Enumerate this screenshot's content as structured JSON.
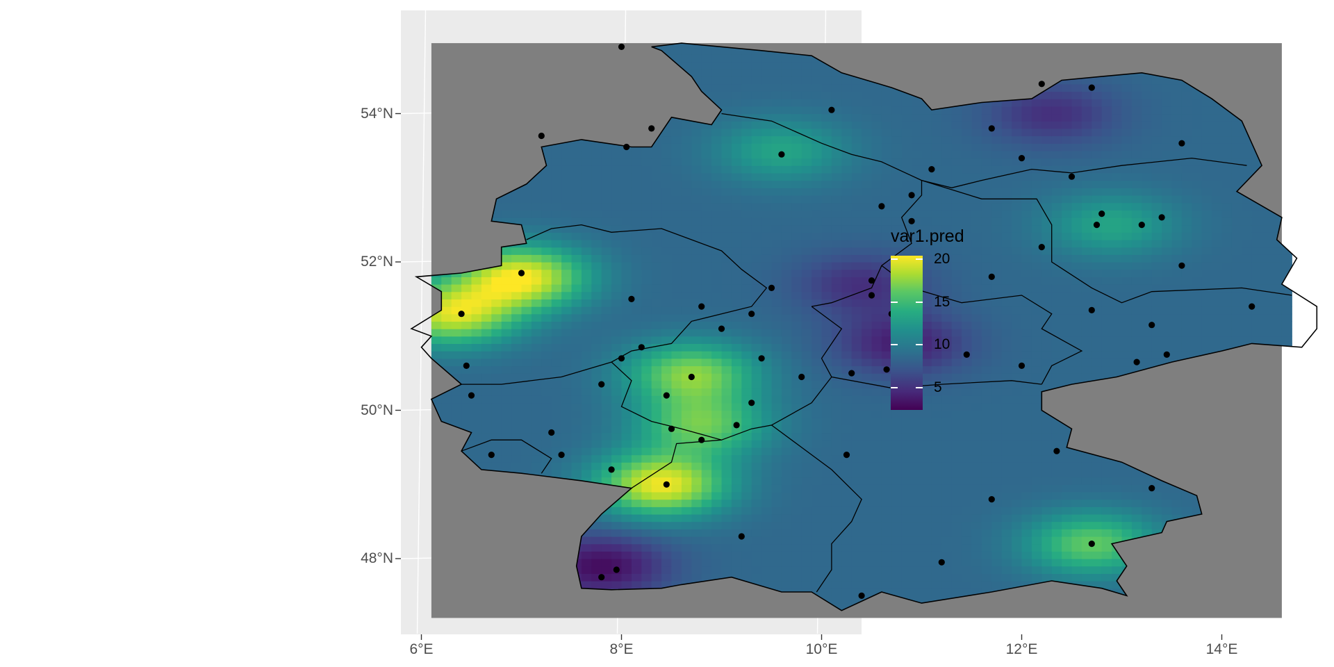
{
  "legend": {
    "title": "var1.pred",
    "ticks": [
      {
        "label": "20",
        "value": 20
      },
      {
        "label": "15",
        "value": 15
      },
      {
        "label": "10",
        "value": 10
      },
      {
        "label": "5",
        "value": 5
      }
    ],
    "range": [
      2.4,
      20.4
    ],
    "colormap": "viridis",
    "colors": [
      "#440154",
      "#3b528b",
      "#21908d",
      "#5dc863",
      "#fde725"
    ]
  },
  "axes": {
    "x_ticks": [
      {
        "label": "6°E",
        "lon": 6
      },
      {
        "label": "8°E",
        "lon": 8
      },
      {
        "label": "10°E",
        "lon": 10
      },
      {
        "label": "12°E",
        "lon": 12
      },
      {
        "label": "14°E",
        "lon": 14
      }
    ],
    "y_ticks": [
      {
        "label": "54°N",
        "lat": 54
      },
      {
        "label": "52°N",
        "lat": 52
      },
      {
        "label": "50°N",
        "lat": 50
      },
      {
        "label": "48°N",
        "lat": 48
      }
    ],
    "lon_range": [
      5.9,
      15.0
    ],
    "lat_range": [
      47.2,
      55.1
    ]
  },
  "map": {
    "panel_color": "#ebebeb",
    "background_fill": "#7f7f7f",
    "border_color": "#000000",
    "point_color": "#000000",
    "region": "Germany",
    "grid_extent": {
      "lon": [
        6.1,
        14.6
      ],
      "lat": [
        47.2,
        54.95
      ]
    }
  },
  "chart_data": {
    "type": "heatmap",
    "title": "",
    "xlabel": "",
    "ylabel": "",
    "legend_title": "var1.pred",
    "value_range": [
      2.4,
      20.4
    ],
    "hotspots": [
      {
        "lon": 7.0,
        "lat": 51.8,
        "value": 20
      },
      {
        "lon": 6.3,
        "lat": 51.3,
        "value": 19
      },
      {
        "lon": 8.4,
        "lat": 49.0,
        "value": 20
      },
      {
        "lon": 8.7,
        "lat": 50.5,
        "value": 17
      },
      {
        "lon": 8.8,
        "lat": 49.8,
        "value": 16
      },
      {
        "lon": 12.7,
        "lat": 48.2,
        "value": 16
      },
      {
        "lon": 9.6,
        "lat": 53.5,
        "value": 13
      },
      {
        "lon": 12.9,
        "lat": 52.5,
        "value": 13
      },
      {
        "lon": 7.8,
        "lat": 47.9,
        "value": 3
      },
      {
        "lon": 10.8,
        "lat": 50.9,
        "value": 4
      },
      {
        "lon": 10.4,
        "lat": 51.7,
        "value": 5
      },
      {
        "lon": 12.3,
        "lat": 54.0,
        "value": 5
      }
    ],
    "stations": [
      {
        "lon": 8.0,
        "lat": 54.9
      },
      {
        "lon": 10.1,
        "lat": 54.05
      },
      {
        "lon": 7.2,
        "lat": 53.7
      },
      {
        "lon": 8.05,
        "lat": 53.55
      },
      {
        "lon": 8.3,
        "lat": 53.8
      },
      {
        "lon": 9.6,
        "lat": 53.45
      },
      {
        "lon": 11.7,
        "lat": 53.8
      },
      {
        "lon": 12.2,
        "lat": 54.4
      },
      {
        "lon": 12.7,
        "lat": 54.35
      },
      {
        "lon": 13.6,
        "lat": 53.6
      },
      {
        "lon": 12.0,
        "lat": 53.4
      },
      {
        "lon": 11.1,
        "lat": 53.25
      },
      {
        "lon": 12.5,
        "lat": 53.15
      },
      {
        "lon": 10.9,
        "lat": 52.9
      },
      {
        "lon": 10.6,
        "lat": 52.75
      },
      {
        "lon": 10.9,
        "lat": 52.55
      },
      {
        "lon": 12.8,
        "lat": 52.65
      },
      {
        "lon": 12.75,
        "lat": 52.5
      },
      {
        "lon": 13.2,
        "lat": 52.5
      },
      {
        "lon": 13.4,
        "lat": 52.6
      },
      {
        "lon": 12.2,
        "lat": 52.2
      },
      {
        "lon": 13.6,
        "lat": 51.95
      },
      {
        "lon": 7.0,
        "lat": 51.85
      },
      {
        "lon": 11.7,
        "lat": 51.8
      },
      {
        "lon": 10.5,
        "lat": 51.75
      },
      {
        "lon": 10.9,
        "lat": 51.65
      },
      {
        "lon": 8.1,
        "lat": 51.5
      },
      {
        "lon": 9.5,
        "lat": 51.65
      },
      {
        "lon": 10.5,
        "lat": 51.55
      },
      {
        "lon": 6.4,
        "lat": 51.3
      },
      {
        "lon": 8.8,
        "lat": 51.4
      },
      {
        "lon": 9.3,
        "lat": 51.3
      },
      {
        "lon": 10.7,
        "lat": 51.3
      },
      {
        "lon": 9.0,
        "lat": 51.1
      },
      {
        "lon": 12.7,
        "lat": 51.35
      },
      {
        "lon": 13.3,
        "lat": 51.15
      },
      {
        "lon": 14.3,
        "lat": 51.4
      },
      {
        "lon": 6.45,
        "lat": 50.6
      },
      {
        "lon": 8.0,
        "lat": 50.7
      },
      {
        "lon": 8.2,
        "lat": 50.85
      },
      {
        "lon": 9.4,
        "lat": 50.7
      },
      {
        "lon": 11.45,
        "lat": 50.75
      },
      {
        "lon": 13.15,
        "lat": 50.65
      },
      {
        "lon": 13.45,
        "lat": 50.75
      },
      {
        "lon": 6.5,
        "lat": 50.2
      },
      {
        "lon": 7.8,
        "lat": 50.35
      },
      {
        "lon": 8.7,
        "lat": 50.45
      },
      {
        "lon": 9.8,
        "lat": 50.45
      },
      {
        "lon": 10.3,
        "lat": 50.5
      },
      {
        "lon": 10.65,
        "lat": 50.55
      },
      {
        "lon": 10.95,
        "lat": 50.45
      },
      {
        "lon": 12.0,
        "lat": 50.6
      },
      {
        "lon": 8.45,
        "lat": 50.2
      },
      {
        "lon": 9.3,
        "lat": 50.1
      },
      {
        "lon": 7.3,
        "lat": 49.7
      },
      {
        "lon": 8.5,
        "lat": 49.75
      },
      {
        "lon": 9.15,
        "lat": 49.8
      },
      {
        "lon": 8.8,
        "lat": 49.6
      },
      {
        "lon": 6.7,
        "lat": 49.4
      },
      {
        "lon": 7.4,
        "lat": 49.4
      },
      {
        "lon": 7.9,
        "lat": 49.2
      },
      {
        "lon": 10.25,
        "lat": 49.4
      },
      {
        "lon": 12.35,
        "lat": 49.45
      },
      {
        "lon": 8.45,
        "lat": 49.0
      },
      {
        "lon": 13.3,
        "lat": 48.95
      },
      {
        "lon": 11.7,
        "lat": 48.8
      },
      {
        "lon": 9.2,
        "lat": 48.3
      },
      {
        "lon": 12.7,
        "lat": 48.2
      },
      {
        "lon": 11.2,
        "lat": 47.95
      },
      {
        "lon": 7.95,
        "lat": 47.85
      },
      {
        "lon": 7.8,
        "lat": 47.75
      },
      {
        "lon": 10.4,
        "lat": 47.5
      }
    ]
  }
}
